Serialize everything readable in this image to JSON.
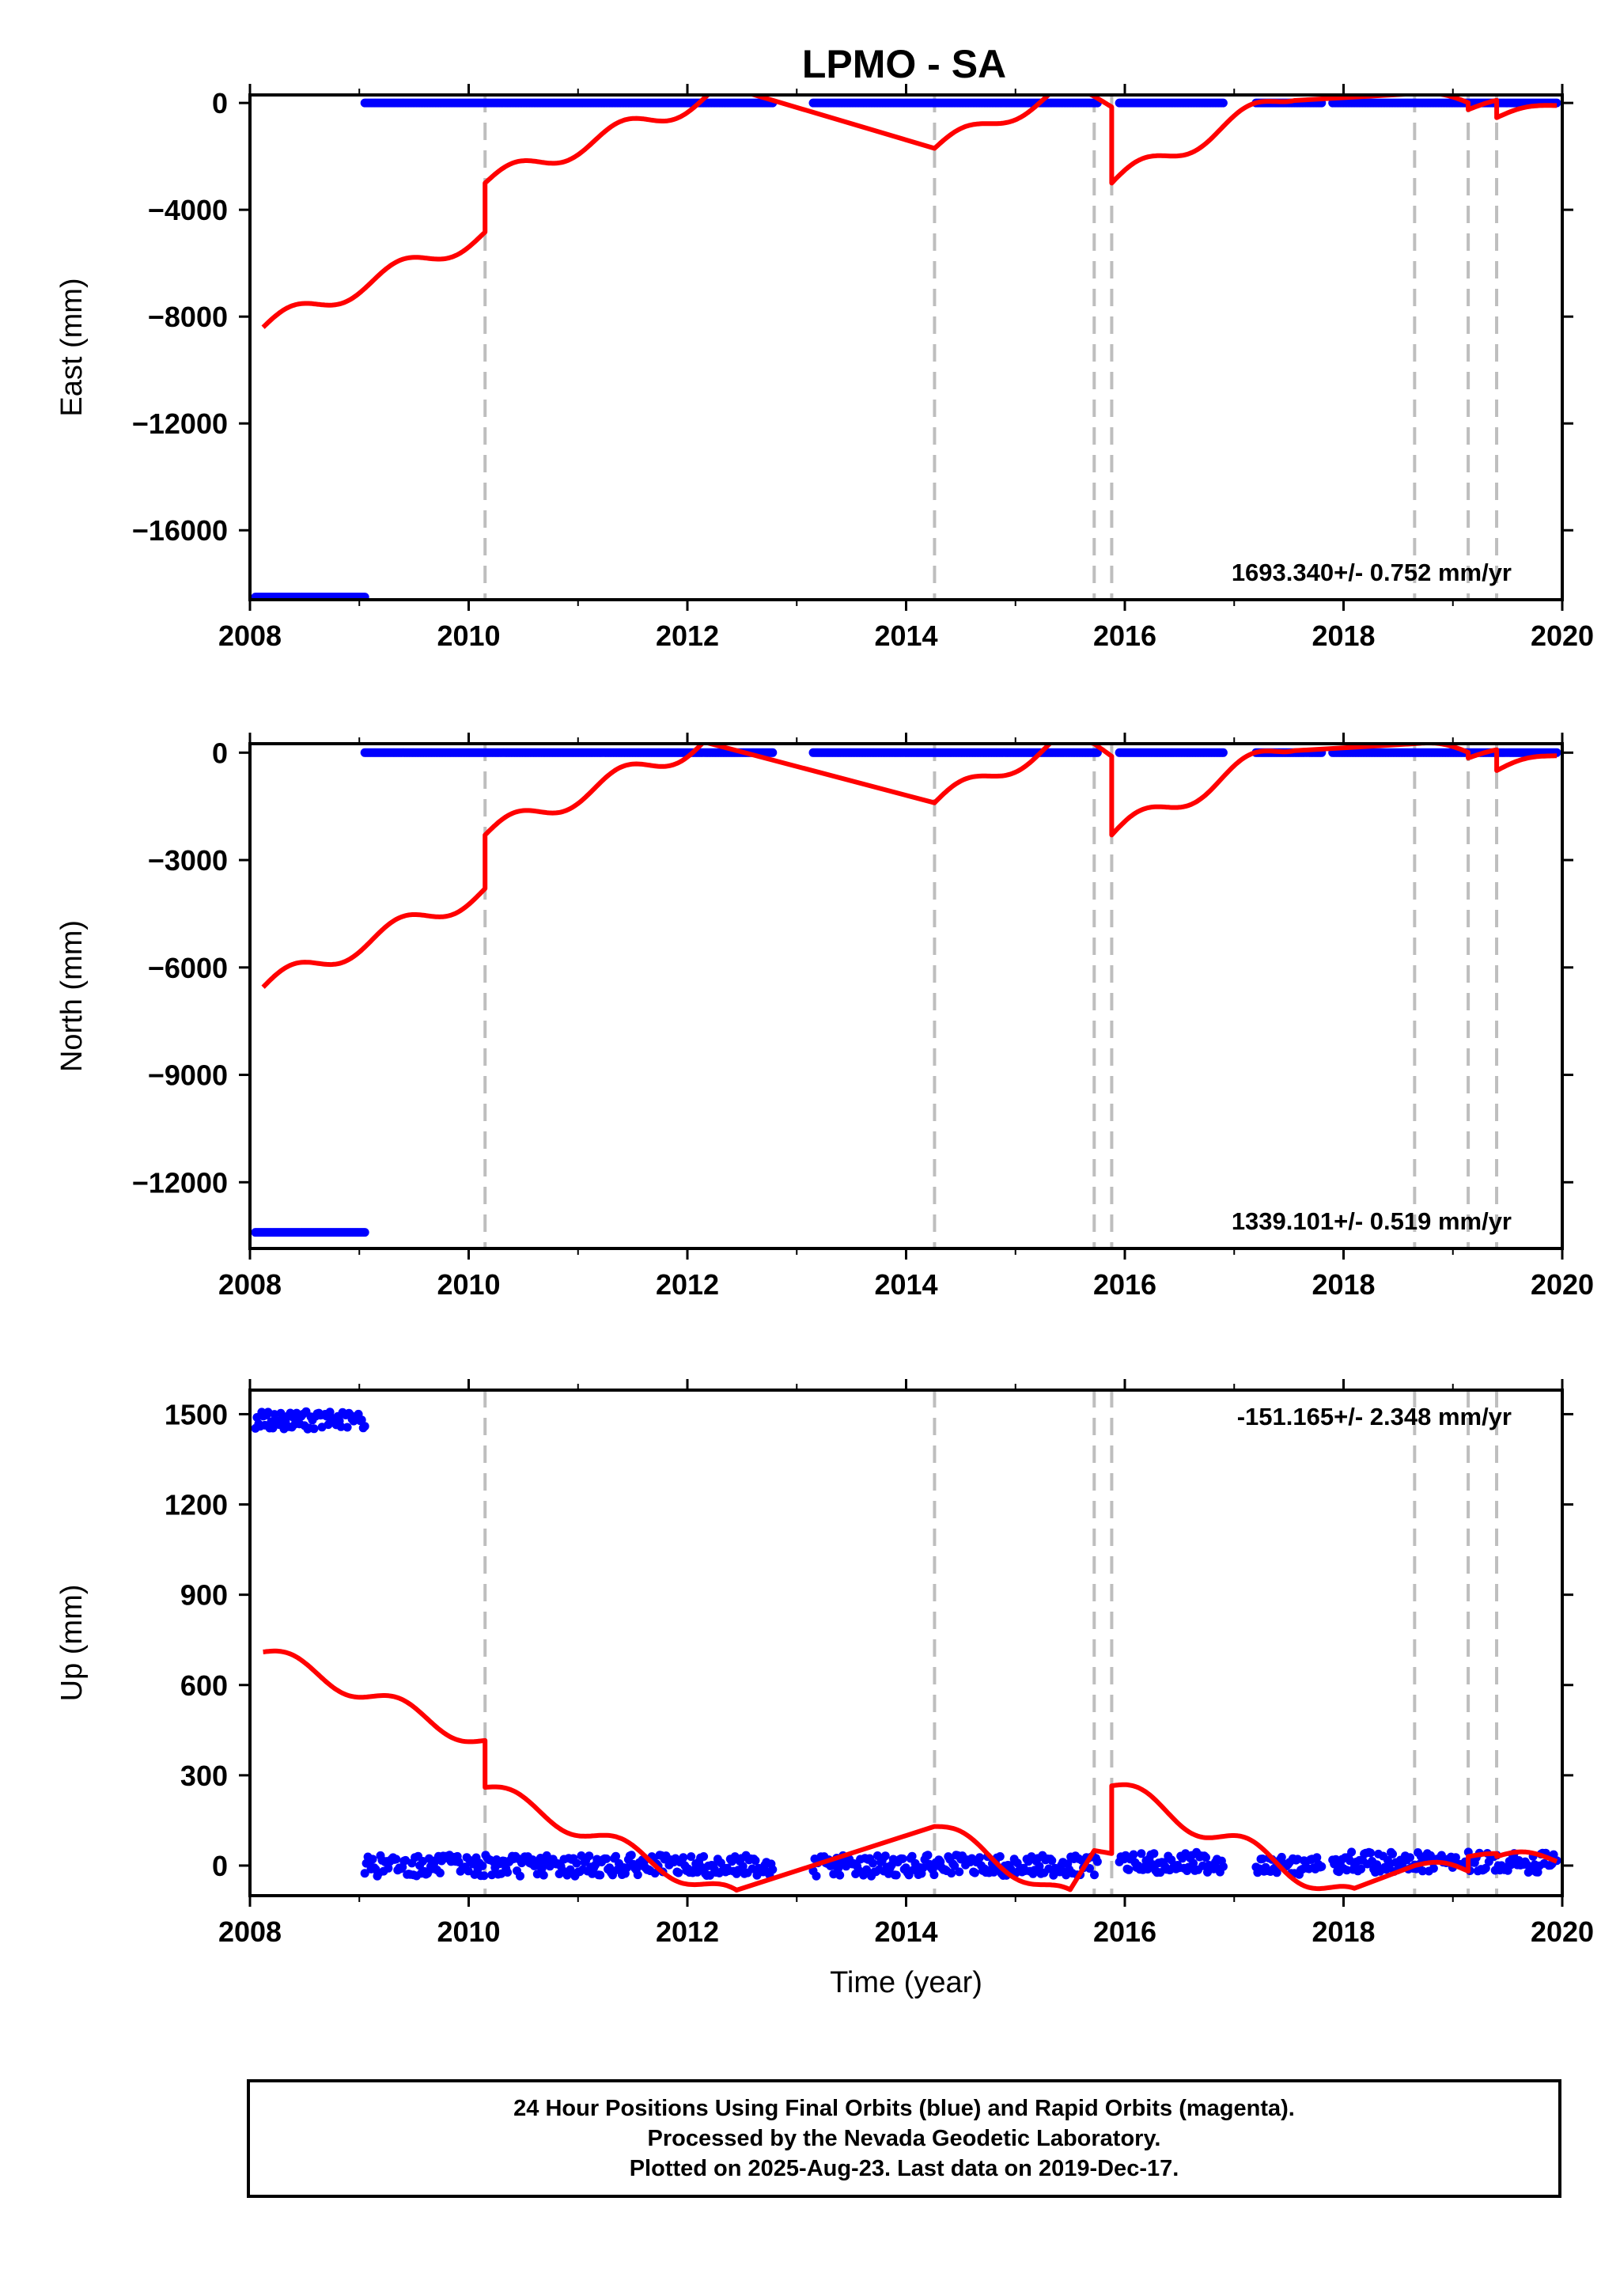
{
  "title": "LPMO - SA",
  "colors": {
    "final_orbit_points": "#0000ff",
    "model_line": "#ff0000",
    "offset_lines": "#bebebe",
    "frame": "#000000"
  },
  "chart_data": [
    {
      "type": "scatter",
      "panel": "East",
      "ylabel": "East (mm)",
      "xlim": [
        2008,
        2020
      ],
      "ylim": [
        -18600,
        300
      ],
      "x_ticks": [
        2008,
        2010,
        2012,
        2014,
        2016,
        2018,
        2020
      ],
      "y_ticks": [
        0,
        -4000,
        -8000,
        -12000,
        -16000
      ],
      "y_tick_labels": [
        "0",
        "−4000",
        "−8000",
        "−12000",
        "−16000"
      ],
      "rate_label": "1693.340+/- 0.752 mm/yr",
      "rate_label_position": "bottom-right",
      "series": [
        {
          "kind": "points",
          "segments": [
            {
              "x": [
                2008.05,
                2009.05
              ],
              "y": -18500
            },
            {
              "x": [
                2009.05,
                2012.78
              ],
              "y": 0
            },
            {
              "x": [
                2013.15,
                2015.75
              ],
              "y": 0
            },
            {
              "x": [
                2015.95,
                2016.9
              ],
              "y": 0
            },
            {
              "x": [
                2017.2,
                2017.8
              ],
              "y": 0
            },
            {
              "x": [
                2017.9,
                2019.95
              ],
              "y": 0
            }
          ]
        },
        {
          "kind": "model",
          "segments": [
            {
              "x_start": 2008.12,
              "x_end": 2010.15,
              "y_start": -8400,
              "y_end": -4900,
              "amplitude": 350
            },
            {
              "x_start": 2010.15,
              "x_end": 2012.3,
              "y_start": -3000,
              "y_end": 400,
              "amplitude": 350
            },
            {
              "x_start": 2014.26,
              "x_end": 2015.45,
              "y_start": -1700,
              "y_end": 500,
              "amplitude": 300
            },
            {
              "x_start": 2015.72,
              "x_end": 2015.88,
              "y_start": 250,
              "y_end": -150,
              "amplitude": 0
            },
            {
              "x_start": 2015.88,
              "x_end": 2017.55,
              "y_start": -3000,
              "y_end": 400,
              "amplitude": 350
            },
            {
              "x_start": 2018.65,
              "x_end": 2019.14,
              "y_start": 350,
              "y_end": 0,
              "amplitude": 150
            },
            {
              "x_start": 2019.14,
              "x_end": 2019.4,
              "y_start": -250,
              "y_end": 0,
              "amplitude": 100
            },
            {
              "x_start": 2019.4,
              "x_end": 2019.95,
              "y_start": -550,
              "y_end": -50,
              "amplitude": 150
            }
          ]
        }
      ]
    },
    {
      "type": "scatter",
      "panel": "North",
      "ylabel": "North (mm)",
      "xlim": [
        2008,
        2020
      ],
      "ylim": [
        -13850,
        250
      ],
      "x_ticks": [
        2008,
        2010,
        2012,
        2014,
        2016,
        2018,
        2020
      ],
      "y_ticks": [
        0,
        -3000,
        -6000,
        -9000,
        -12000
      ],
      "y_tick_labels": [
        "0",
        "−3000",
        "−6000",
        "−9000",
        "−12000"
      ],
      "rate_label": "1339.101+/- 0.519 mm/yr",
      "rate_label_position": "bottom-right",
      "series": [
        {
          "kind": "points",
          "segments": [
            {
              "x": [
                2008.05,
                2009.05
              ],
              "y": -13400
            },
            {
              "x": [
                2009.05,
                2012.78
              ],
              "y": 0
            },
            {
              "x": [
                2013.15,
                2015.75
              ],
              "y": 0
            },
            {
              "x": [
                2015.95,
                2016.9
              ],
              "y": 0
            },
            {
              "x": [
                2017.2,
                2017.8
              ],
              "y": 0
            },
            {
              "x": [
                2017.9,
                2019.95
              ],
              "y": 0
            }
          ]
        },
        {
          "kind": "model",
          "segments": [
            {
              "x_start": 2008.12,
              "x_end": 2010.15,
              "y_start": -6550,
              "y_end": -3850,
              "amplitude": 280
            },
            {
              "x_start": 2010.15,
              "x_end": 2012.15,
              "y_start": -2300,
              "y_end": 300,
              "amplitude": 280
            },
            {
              "x_start": 2014.26,
              "x_end": 2015.4,
              "y_start": -1400,
              "y_end": 300,
              "amplitude": 250
            },
            {
              "x_start": 2015.72,
              "x_end": 2015.88,
              "y_start": 250,
              "y_end": -100,
              "amplitude": 0
            },
            {
              "x_start": 2015.88,
              "x_end": 2017.55,
              "y_start": -2300,
              "y_end": 300,
              "amplitude": 280
            },
            {
              "x_start": 2018.65,
              "x_end": 2019.14,
              "y_start": 250,
              "y_end": 0,
              "amplitude": 120
            },
            {
              "x_start": 2019.14,
              "x_end": 2019.4,
              "y_start": -150,
              "y_end": 0,
              "amplitude": 80
            },
            {
              "x_start": 2019.4,
              "x_end": 2019.95,
              "y_start": -500,
              "y_end": -50,
              "amplitude": 120
            }
          ]
        }
      ]
    },
    {
      "type": "scatter",
      "panel": "Up",
      "ylabel": "Up (mm)",
      "xlabel": "Time (year)",
      "xlim": [
        2008,
        2020
      ],
      "ylim": [
        -100,
        1580
      ],
      "x_ticks": [
        2008,
        2010,
        2012,
        2014,
        2016,
        2018,
        2020
      ],
      "y_ticks": [
        0,
        300,
        600,
        900,
        1200,
        1500
      ],
      "y_tick_labels": [
        "0",
        "300",
        "600",
        "900",
        "1200",
        "1500"
      ],
      "rate_label": "-151.165+/- 2.348 mm/yr",
      "rate_label_position": "top-right",
      "series": [
        {
          "kind": "points",
          "segments": [
            {
              "x": [
                2008.05,
                2009.05
              ],
              "y": 1480,
              "spread": 30
            },
            {
              "x": [
                2009.05,
                2012.78
              ],
              "y": 0,
              "spread": 35
            },
            {
              "x": [
                2013.15,
                2015.75
              ],
              "y": 0,
              "spread": 35
            },
            {
              "x": [
                2015.95,
                2016.9
              ],
              "y": 10,
              "spread": 35
            },
            {
              "x": [
                2017.2,
                2017.8
              ],
              "y": 0,
              "spread": 30
            },
            {
              "x": [
                2017.9,
                2019.95
              ],
              "y": 10,
              "spread": 35
            }
          ]
        },
        {
          "kind": "model",
          "segments": [
            {
              "x_start": 2008.12,
              "x_end": 2010.15,
              "y_start": 710,
              "y_end": 410,
              "amplitude": 30
            },
            {
              "x_start": 2010.15,
              "x_end": 2012.45,
              "y_start": 260,
              "y_end": -110,
              "amplitude": 30
            },
            {
              "x_start": 2014.26,
              "x_end": 2015.5,
              "y_start": 130,
              "y_end": -110,
              "amplitude": 30
            },
            {
              "x_start": 2015.72,
              "x_end": 2015.88,
              "y_start": 50,
              "y_end": 40,
              "amplitude": 0
            },
            {
              "x_start": 2015.88,
              "x_end": 2018.1,
              "y_start": 265,
              "y_end": -110,
              "amplitude": 35
            },
            {
              "x_start": 2018.65,
              "x_end": 2019.14,
              "y_start": 0,
              "y_end": -20,
              "amplitude": 20
            },
            {
              "x_start": 2019.14,
              "x_end": 2019.4,
              "y_start": 30,
              "y_end": 30,
              "amplitude": 10
            },
            {
              "x_start": 2019.4,
              "x_end": 2019.95,
              "y_start": 30,
              "y_end": 20,
              "amplitude": 20
            }
          ]
        }
      ]
    }
  ],
  "offset_lines": [
    2010.15,
    2014.26,
    2015.72,
    2015.88,
    2018.65,
    2019.14,
    2019.4
  ],
  "footer": {
    "line1": "24 Hour Positions Using Final Orbits (blue) and Rapid Orbits (magenta).",
    "line2": "Processed by the Nevada Geodetic Laboratory.",
    "line3": "Plotted on 2025-Aug-23. Last data on 2019-Dec-17."
  }
}
